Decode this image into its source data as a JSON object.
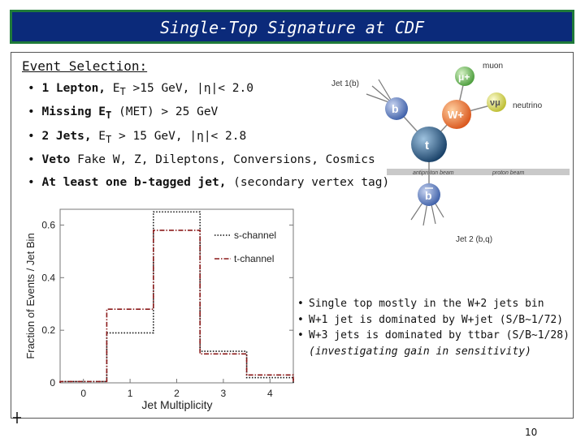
{
  "slide": {
    "title": "Single-Top Signature at CDF",
    "page_number": "10"
  },
  "selection": {
    "heading": "Event Selection:",
    "bullets": [
      {
        "bold": "1 Lepton,",
        "rest_html": " E<sub>T</sub> >15 GeV, |&eta;|< 2.0"
      },
      {
        "bold": "Missing E<sub>T</sub>",
        "rest_html": " (MET) > 25 GeV"
      },
      {
        "bold": "2 Jets,",
        "rest_html": " E<sub>T</sub> > 15 GeV, |&eta;|< 2.8"
      },
      {
        "bold": "Veto",
        "rest_html": " Fake W, Z, Dileptons, Conversions, Cosmics"
      },
      {
        "bold": "At least one b-tagged jet,",
        "rest_html": " (secondary vertex tag)"
      }
    ]
  },
  "diagram": {
    "labels": {
      "jet1": "Jet 1(b)",
      "muon": "muon",
      "neutrino": "neutrino",
      "antiproton": "antiproton beam",
      "proton": "proton beam",
      "jet2": "Jet 2 (b,q)"
    },
    "particles": {
      "mu": "μ+",
      "nu": "νμ",
      "b": "b",
      "w": "W+",
      "t": "t",
      "bbar": "b"
    },
    "colors": {
      "b": "#4d6fb0",
      "w": "#e06a1f",
      "t": "#1d5a86",
      "mu": "#6bbf59",
      "nu": "#d8d84a",
      "bbar": "#5a78c0"
    }
  },
  "chart_data": {
    "type": "bar",
    "style": "step-histogram",
    "xlabel": "Jet Multiplicity",
    "ylabel": "Fraction of Events / Jet Bin",
    "xlim": [
      -0.5,
      4.5
    ],
    "ylim": [
      0,
      0.66
    ],
    "x_ticks": [
      "0",
      "1",
      "2",
      "3",
      "4"
    ],
    "y_ticks": [
      "0",
      "0.2",
      "0.4",
      "0.6"
    ],
    "y_tick_values": [
      0,
      0.2,
      0.4,
      0.6
    ],
    "categories": [
      0,
      1,
      2,
      3,
      4
    ],
    "series": [
      {
        "name": "s-channel",
        "values": [
          0.005,
          0.19,
          0.65,
          0.12,
          0.02
        ],
        "color": "#111111",
        "dash": "dotted"
      },
      {
        "name": "t-channel",
        "values": [
          0.005,
          0.28,
          0.58,
          0.11,
          0.03
        ],
        "color": "#8b1a1a",
        "dash": "dashdot"
      }
    ],
    "legend_position": "top-right"
  },
  "notes": [
    "Single top mostly in the W+2 jets bin",
    "W+1 jet is dominated by W+jet (S/B~1/72)",
    "W+3 jets is dominated by ttbar (S/B~1/28)"
  ],
  "notes_italic": "(investigating gain in sensitivity)",
  "note_bullet": "•"
}
